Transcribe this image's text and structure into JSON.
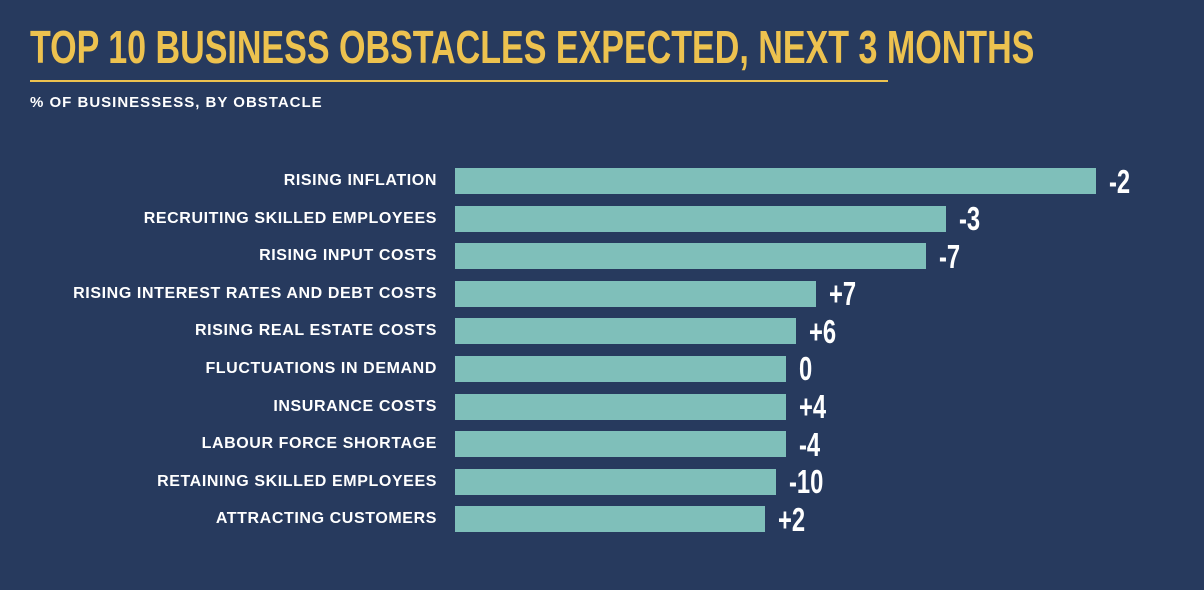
{
  "header": {
    "title": "TOP 10 BUSINESS OBSTACLES EXPECTED, NEXT 3 MONTHS",
    "subtitle": "% OF BUSINESSESS, BY OBSTACLE"
  },
  "colors": {
    "background": "#273A5E",
    "accent_gold": "#EDC24F",
    "bar_teal": "#7FBFBA",
    "text_white": "#FFFFFF"
  },
  "chart_data": {
    "type": "bar",
    "orientation": "horizontal",
    "title": "TOP 10 BUSINESS OBSTACLES EXPECTED, NEXT 3 MONTHS",
    "subtitle": "% OF BUSINESSESS, BY OBSTACLE",
    "categories": [
      "RISING INFLATION",
      "RECRUITING SKILLED EMPLOYEES",
      "RISING INPUT COSTS",
      "RISING INTEREST RATES AND DEBT COSTS",
      "RISING REAL ESTATE COSTS",
      "FLUCTUATIONS IN DEMAND",
      "INSURANCE COSTS",
      "LABOUR FORCE SHORTAGE",
      "RETAINING SKILLED EMPLOYEES",
      "ATTRACTING CUSTOMERS"
    ],
    "values": [
      64,
      49,
      47,
      36,
      34,
      33,
      33,
      33,
      32,
      31
    ],
    "change_labels": [
      "-2",
      "-3",
      "-7",
      "+7",
      "+6",
      "0",
      "+4",
      "-4",
      "-10",
      "+2"
    ],
    "xlabel": "",
    "ylabel": "",
    "xlim": [
      0,
      64
    ],
    "grid": false,
    "legend": false,
    "bar_color": "#7FBFBA",
    "value_label_position": "end-of-bar"
  }
}
